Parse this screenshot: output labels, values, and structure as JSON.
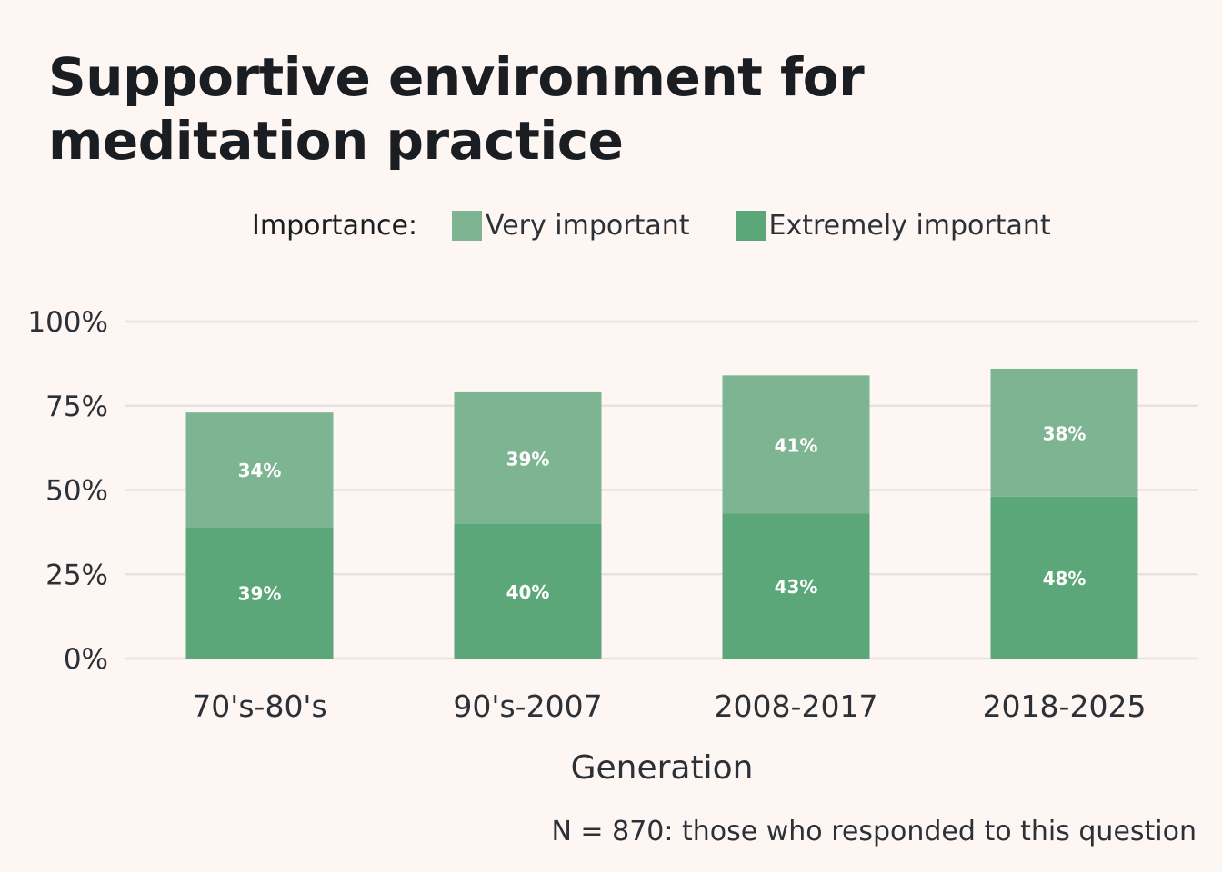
{
  "chart_data": {
    "type": "bar",
    "stacked": true,
    "title": "Supportive environment for meditation practice",
    "xlabel": "Generation",
    "ylabel": "",
    "categories": [
      "70's-80's",
      "90's-2007",
      "2008-2017",
      "2018-2025"
    ],
    "series": [
      {
        "name": "Extremely important",
        "values": [
          39,
          40,
          43,
          48
        ],
        "labels": [
          "39%",
          "40%",
          "43%",
          "48%"
        ],
        "color": "#5ba779"
      },
      {
        "name": "Very important",
        "values": [
          34,
          39,
          41,
          38
        ],
        "labels": [
          "34%",
          "39%",
          "41%",
          "38%"
        ],
        "color": "#7db593"
      }
    ],
    "ylim": [
      0,
      100
    ],
    "yticks": [
      0,
      25,
      50,
      75,
      100
    ],
    "ytick_labels": [
      "0%",
      "25%",
      "50%",
      "75%",
      "100%"
    ],
    "legend_title": "Importance:",
    "legend_order": [
      "Very important",
      "Extremely important"
    ],
    "legend_placement": "top",
    "grid": true,
    "note": "N = 870: those who responded to this question"
  },
  "colors": {
    "background": "#fdf6f2",
    "gridline": "#e6e4e2",
    "bar_label": "#ffffff",
    "text": "#2c3038",
    "title": "#1a1d21"
  }
}
